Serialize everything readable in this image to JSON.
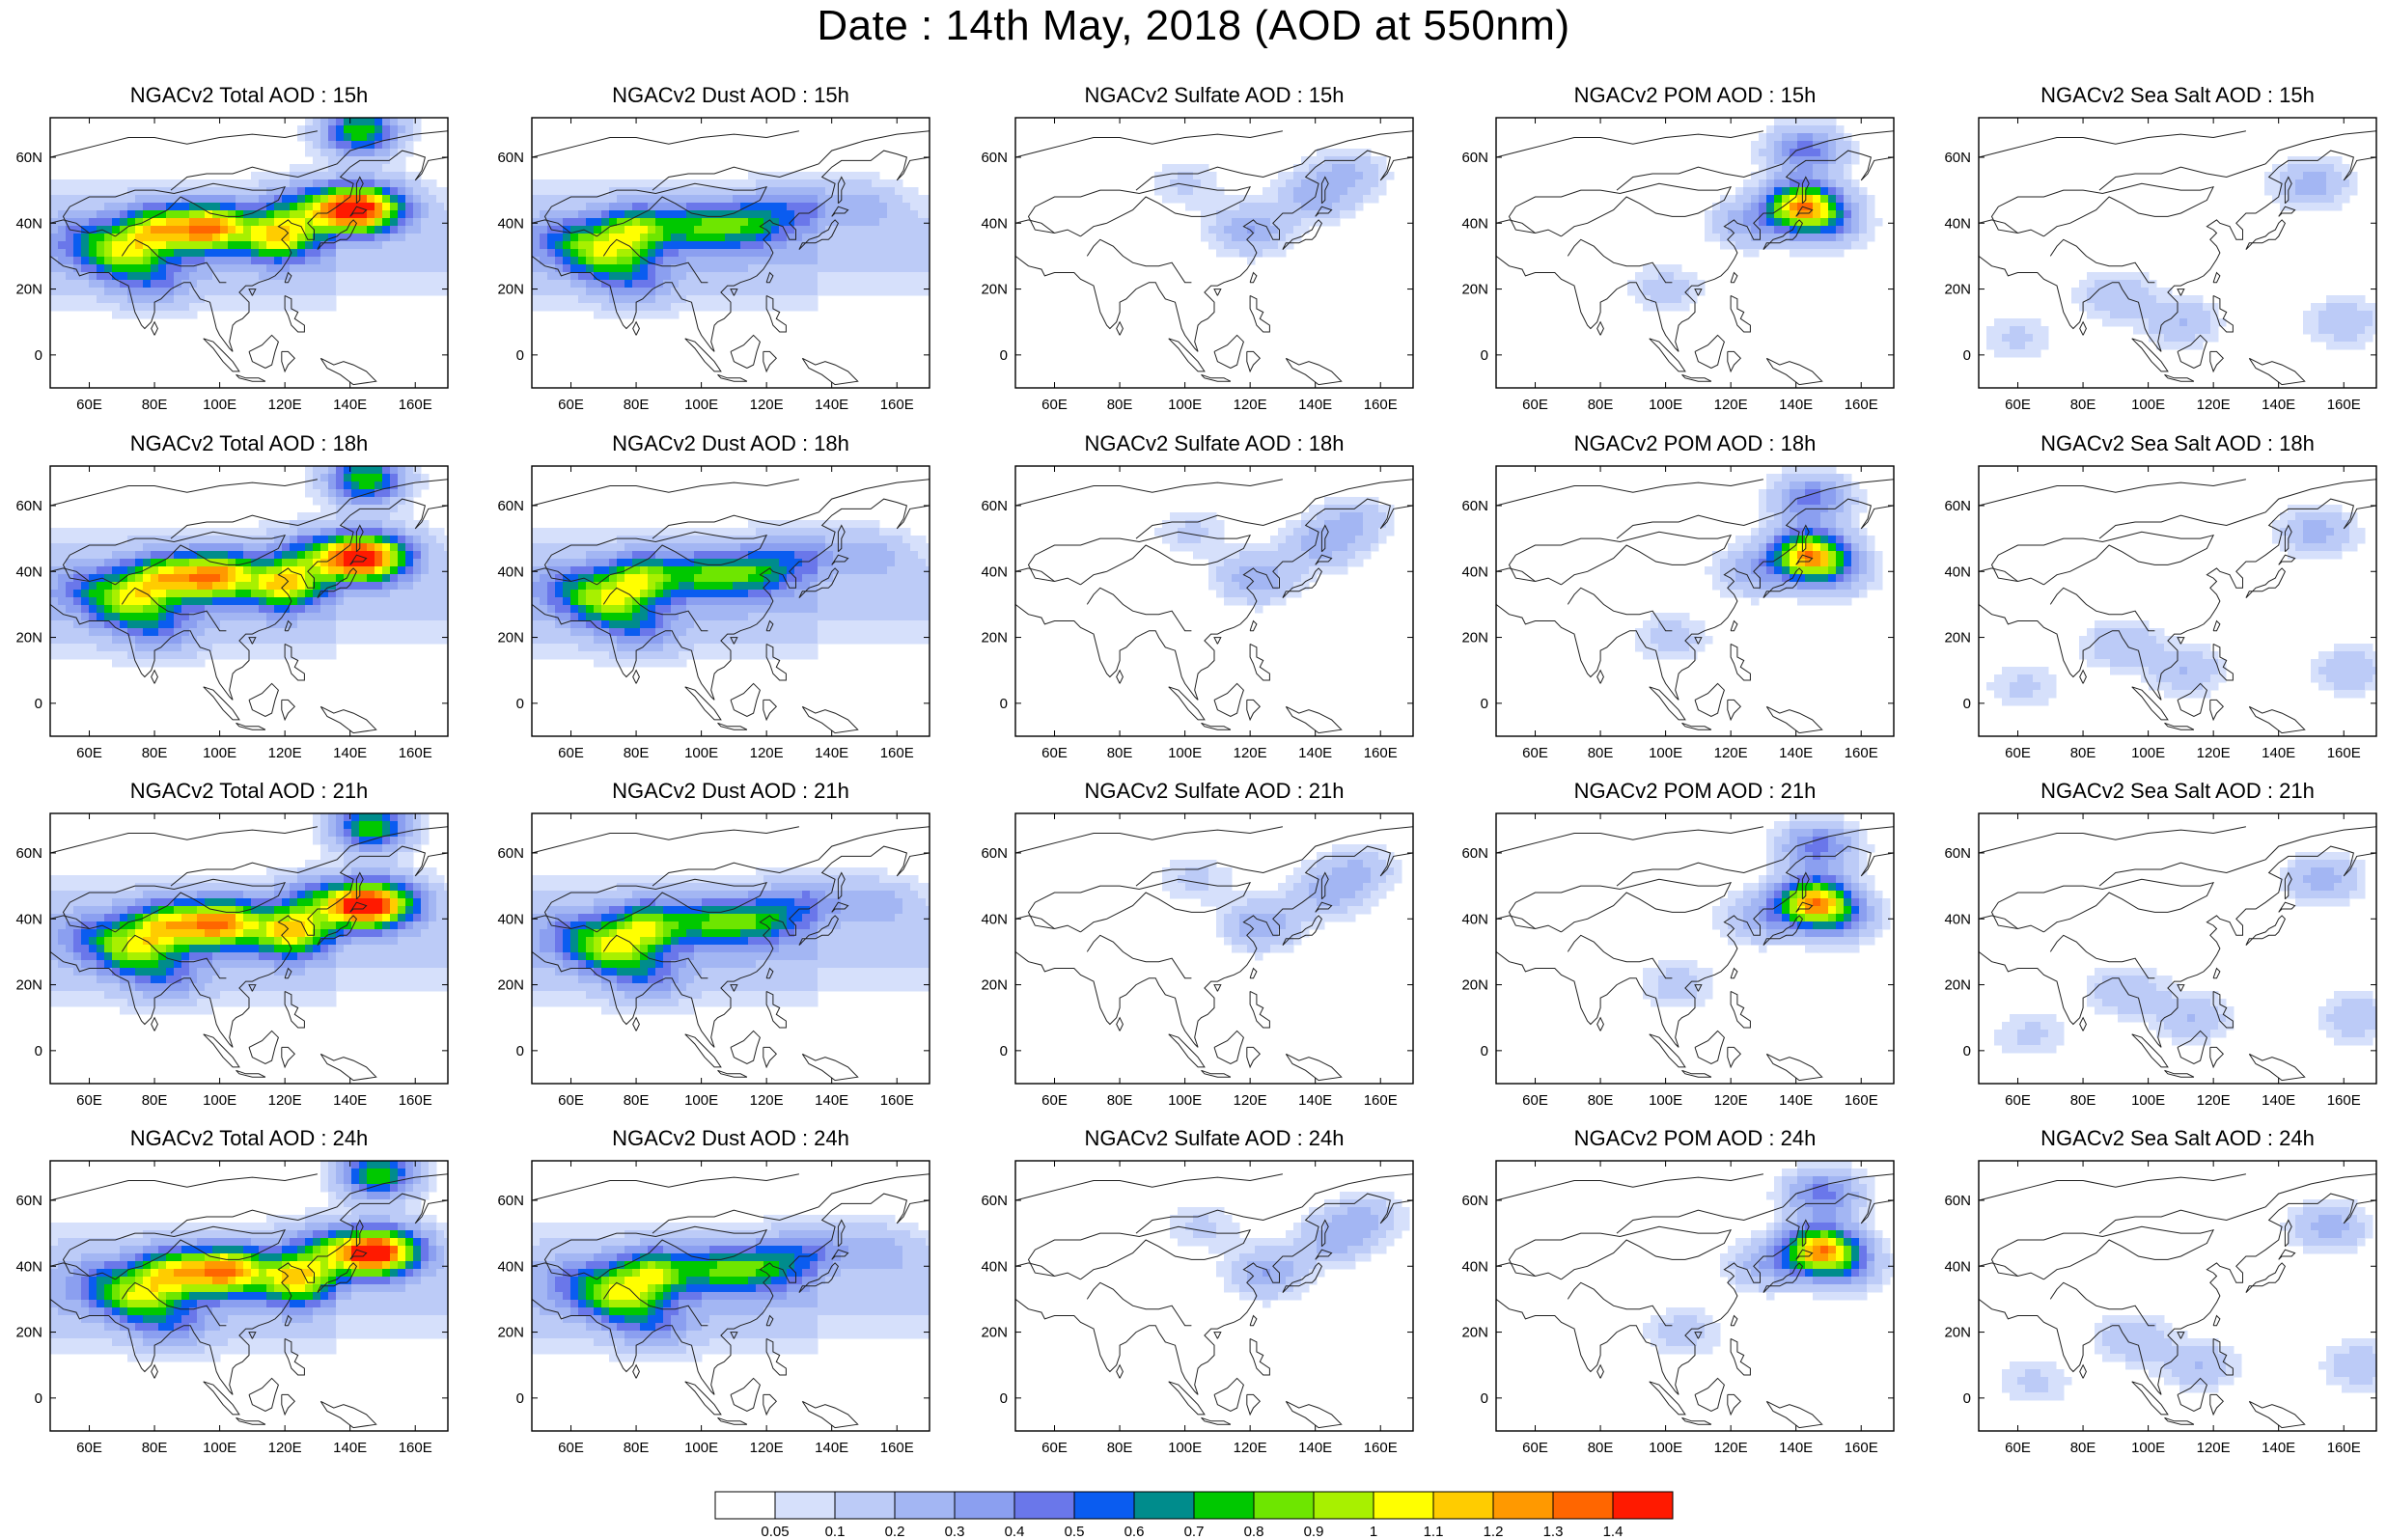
{
  "title": "Date : 14th May, 2018 (AOD at 550nm)",
  "map": {
    "lon_range": [
      48,
      170
    ],
    "lat_range": [
      -10,
      72
    ],
    "x_ticks": [
      "60E",
      "80E",
      "100E",
      "120E",
      "140E",
      "160E"
    ],
    "x_tick_values": [
      60,
      80,
      100,
      120,
      140,
      160
    ],
    "y_ticks": [
      "60N",
      "40N",
      "20N",
      "0"
    ],
    "y_tick_values": [
      60,
      40,
      20,
      0
    ]
  },
  "panels": [
    [
      {
        "title": "NGACv2 Total AOD : 15h",
        "species": "total",
        "hour": 15
      },
      {
        "title": "NGACv2 Dust AOD : 15h",
        "species": "dust",
        "hour": 15
      },
      {
        "title": "NGACv2 Sulfate AOD : 15h",
        "species": "sulfate",
        "hour": 15
      },
      {
        "title": "NGACv2 POM AOD : 15h",
        "species": "pom",
        "hour": 15
      },
      {
        "title": "NGACv2 Sea Salt AOD : 15h",
        "species": "seasalt",
        "hour": 15
      }
    ],
    [
      {
        "title": "NGACv2 Total AOD : 18h",
        "species": "total",
        "hour": 18
      },
      {
        "title": "NGACv2 Dust AOD : 18h",
        "species": "dust",
        "hour": 18
      },
      {
        "title": "NGACv2 Sulfate AOD : 18h",
        "species": "sulfate",
        "hour": 18
      },
      {
        "title": "NGACv2 POM AOD : 18h",
        "species": "pom",
        "hour": 18
      },
      {
        "title": "NGACv2 Sea Salt AOD : 18h",
        "species": "seasalt",
        "hour": 18
      }
    ],
    [
      {
        "title": "NGACv2 Total AOD : 21h",
        "species": "total",
        "hour": 21
      },
      {
        "title": "NGACv2 Dust AOD : 21h",
        "species": "dust",
        "hour": 21
      },
      {
        "title": "NGACv2 Sulfate AOD : 21h",
        "species": "sulfate",
        "hour": 21
      },
      {
        "title": "NGACv2 POM AOD : 21h",
        "species": "pom",
        "hour": 21
      },
      {
        "title": "NGACv2 Sea Salt AOD : 21h",
        "species": "seasalt",
        "hour": 21
      }
    ],
    [
      {
        "title": "NGACv2 Total AOD : 24h",
        "species": "total",
        "hour": 24
      },
      {
        "title": "NGACv2 Dust AOD : 24h",
        "species": "dust",
        "hour": 24
      },
      {
        "title": "NGACv2 Sulfate AOD : 24h",
        "species": "sulfate",
        "hour": 24
      },
      {
        "title": "NGACv2 POM AOD : 24h",
        "species": "pom",
        "hour": 24
      },
      {
        "title": "NGACv2 Sea Salt  AOD : 24h",
        "species": "seasalt",
        "hour": 24
      }
    ]
  ],
  "colorbar": {
    "labels": [
      "0.05",
      "0.1",
      "0.2",
      "0.3",
      "0.4",
      "0.5",
      "0.6",
      "0.7",
      "0.8",
      "0.9",
      "1",
      "1.1",
      "1.2",
      "1.3",
      "1.4"
    ],
    "colors": [
      "#ffffff",
      "#d6e0fb",
      "#bccbf7",
      "#a3b6f3",
      "#8b9ff0",
      "#6a77ea",
      "#0a5cf0",
      "#008c8c",
      "#00c800",
      "#6ee600",
      "#a8f000",
      "#ffff00",
      "#ffcc00",
      "#ff9900",
      "#ff6600",
      "#ff1a00"
    ]
  },
  "plume_levels": {
    "total": [
      [
        118,
        36,
        0.9
      ],
      [
        140,
        44,
        1.3
      ],
      [
        143,
        68,
        0.8
      ],
      [
        80,
        38,
        0.8
      ],
      [
        95,
        38,
        0.7
      ],
      [
        70,
        30,
        0.6
      ],
      [
        100,
        40,
        0.45
      ],
      [
        60,
        35,
        0.3
      ],
      [
        80,
        22,
        0.3
      ],
      [
        150,
        45,
        0.5
      ],
      [
        125,
        45,
        0.4
      ]
    ],
    "dust": [
      [
        80,
        38,
        0.75
      ],
      [
        100,
        39,
        0.55
      ],
      [
        70,
        30,
        0.6
      ],
      [
        115,
        40,
        0.5
      ],
      [
        60,
        35,
        0.35
      ],
      [
        80,
        22,
        0.3
      ],
      [
        130,
        45,
        0.3
      ],
      [
        150,
        45,
        0.2
      ]
    ],
    "sulfate": [
      [
        120,
        38,
        0.3
      ],
      [
        140,
        48,
        0.25
      ],
      [
        150,
        55,
        0.2
      ],
      [
        100,
        52,
        0.12
      ]
    ],
    "pom": [
      [
        142,
        45,
        1.2
      ],
      [
        143,
        62,
        0.45
      ],
      [
        150,
        40,
        0.3
      ],
      [
        125,
        40,
        0.25
      ],
      [
        100,
        20,
        0.15
      ]
    ],
    "seasalt": [
      [
        150,
        52,
        0.25
      ],
      [
        90,
        18,
        0.2
      ],
      [
        110,
        10,
        0.2
      ],
      [
        60,
        5,
        0.12
      ],
      [
        160,
        10,
        0.18
      ]
    ]
  }
}
